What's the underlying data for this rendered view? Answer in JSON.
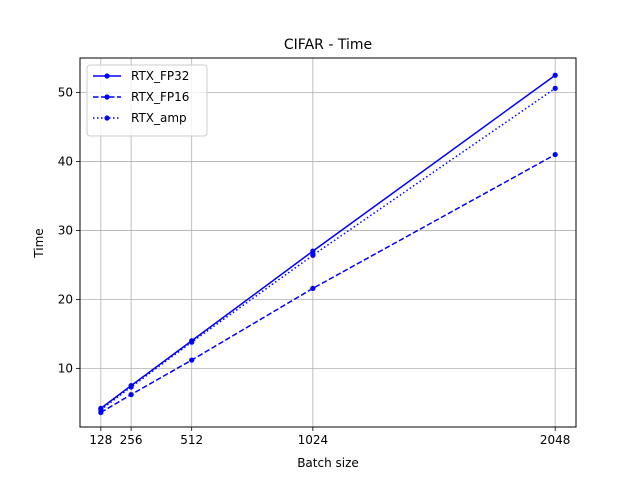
{
  "chart_data": {
    "type": "line",
    "title": "CIFAR - Time",
    "xlabel": "Batch size",
    "ylabel": "Time",
    "x": [
      128,
      256,
      512,
      1024,
      2048
    ],
    "x_ticks": [
      "128",
      "256",
      "512",
      "1024",
      "2048"
    ],
    "y_ticks": [
      "10",
      "20",
      "30",
      "40",
      "50"
    ],
    "y_tick_values": [
      10,
      20,
      30,
      40,
      50
    ],
    "xlim": [
      40,
      2136
    ],
    "ylim": [
      1.5,
      55
    ],
    "grid": true,
    "legend_position": "top-left",
    "series": [
      {
        "name": "RTX_FP32",
        "values": [
          4.2,
          7.5,
          14.0,
          27.0,
          52.5
        ],
        "color": "#0000ff",
        "dash": "solid"
      },
      {
        "name": "RTX_FP16",
        "values": [
          3.6,
          6.2,
          11.2,
          21.6,
          41.0
        ],
        "color": "#0000ff",
        "dash": "dashed"
      },
      {
        "name": "RTX_amp",
        "values": [
          4.0,
          7.3,
          13.8,
          26.4,
          50.6
        ],
        "color": "#0000ff",
        "dash": "dotted"
      }
    ]
  }
}
